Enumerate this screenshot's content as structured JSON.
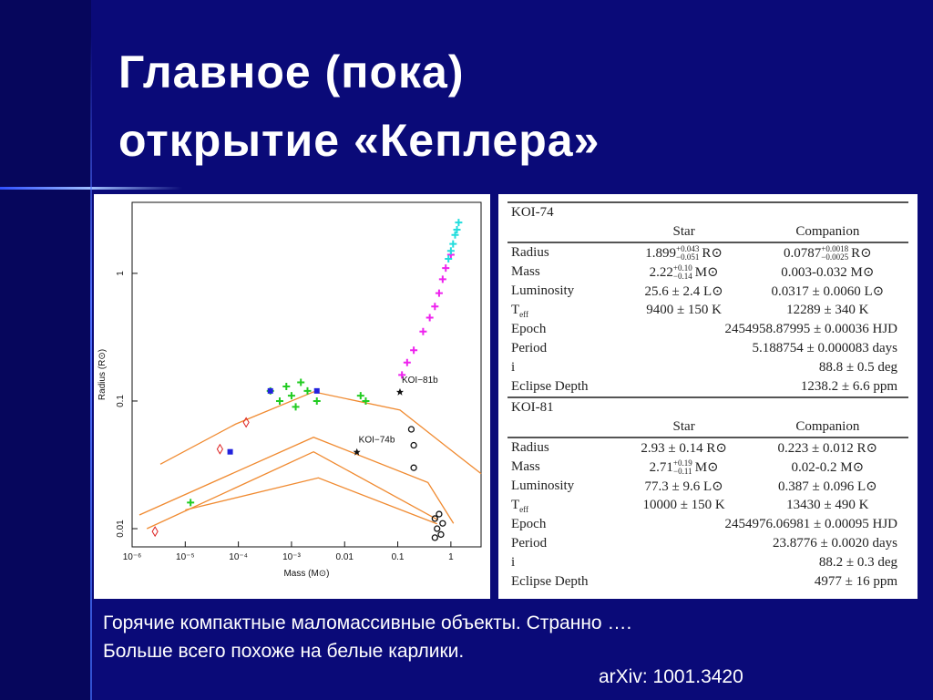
{
  "title": [
    "Главное (пока)",
    "открытие «Кеплера»"
  ],
  "plot": {
    "type": "scatter",
    "xlabel": "Mass (M⊙)",
    "ylabel": "Radius (R⊙)",
    "log_x": true,
    "log_y": true,
    "xlim": [
      1e-06,
      3.7
    ],
    "ylim": [
      0.0072,
      3.6
    ],
    "xticks": [
      {
        "value": 1e-06,
        "label": "10⁻⁶"
      },
      {
        "value": 1e-05,
        "label": "10⁻⁵"
      },
      {
        "value": 0.0001,
        "label": "10⁻⁴"
      },
      {
        "value": 0.001,
        "label": "10⁻³"
      },
      0.01,
      0.1,
      1
    ],
    "yticks": [
      0.01,
      0.1,
      1
    ],
    "curves": [
      {
        "color": "#f08a30",
        "x": [
          3.4e-06,
          8.9e-05,
          0.0026,
          0.11,
          0.82,
          3.7
        ],
        "y": [
          0.032,
          0.066,
          0.118,
          0.085,
          0.044,
          0.027
        ]
      },
      {
        "color": "#f08a30",
        "x": [
          1.37e-06,
          0.0026,
          0.37,
          1.12
        ],
        "y": [
          0.0128,
          0.052,
          0.023,
          0.011
        ]
      },
      {
        "color": "#f08a30",
        "x": [
          1.9e-06,
          0.0026,
          0.55
        ],
        "y": [
          0.01,
          0.04,
          0.0118
        ]
      },
      {
        "color": "#f08a30",
        "x": [
          1e-05,
          0.0032,
          0.55
        ],
        "y": [
          0.014,
          0.025,
          0.0109
        ]
      }
    ],
    "series": [
      {
        "color": "#22cc22",
        "marker": "cross",
        "x": [
          0.0004,
          0.0006,
          0.0008,
          0.001,
          0.0012,
          0.0015,
          0.002,
          0.003,
          0.02,
          0.025,
          1.26e-05
        ],
        "y": [
          0.12,
          0.1,
          0.13,
          0.11,
          0.09,
          0.14,
          0.12,
          0.1,
          0.11,
          0.1,
          0.016
        ]
      },
      {
        "color": "#ee22ee",
        "marker": "cross",
        "x": [
          0.12,
          0.15,
          0.2,
          0.3,
          0.4,
          0.5,
          0.6,
          0.7,
          0.8,
          1.0
        ],
        "y": [
          0.16,
          0.2,
          0.25,
          0.35,
          0.45,
          0.55,
          0.7,
          0.9,
          1.1,
          1.4
        ]
      },
      {
        "color": "#22dddd",
        "marker": "cross",
        "x": [
          0.9,
          1.0,
          1.1,
          1.2,
          1.3,
          1.4
        ],
        "y": [
          1.3,
          1.5,
          1.7,
          2.0,
          2.2,
          2.5
        ]
      },
      {
        "color": "#111111",
        "marker": "circle",
        "x": [
          0.5,
          0.55,
          0.6,
          0.65,
          0.7,
          0.5,
          0.2,
          0.2,
          0.18
        ],
        "y": [
          0.012,
          0.01,
          0.013,
          0.009,
          0.011,
          0.0085,
          0.045,
          0.03,
          0.06
        ]
      },
      {
        "color": "#2222dd",
        "marker": "square",
        "x": [
          0.0004,
          7e-05,
          0.003
        ],
        "y": [
          0.12,
          0.04,
          0.12
        ]
      },
      {
        "color": "#dd2222",
        "marker": "diamond",
        "x": [
          2.7e-06,
          4.5e-05,
          0.00014
        ],
        "y": [
          0.0095,
          0.042,
          0.068
        ]
      },
      {
        "name": "KOI−81b",
        "color": "#111111",
        "marker": "star",
        "x": [
          0.11
        ],
        "y": [
          0.118
        ]
      },
      {
        "name": "KOI−74b",
        "color": "#111111",
        "marker": "star",
        "x": [
          0.017
        ],
        "y": [
          0.04
        ]
      }
    ]
  },
  "table": {
    "sections": [
      {
        "title": "KOI-74",
        "header": [
          "Star",
          "Companion"
        ],
        "rows": [
          {
            "label": "Radius",
            "star": {
              "v": "1.899",
              "sup": "+0.043",
              "sub": "−0.051",
              "u": "R⊙"
            },
            "companion": {
              "v": "0.0787",
              "sup": "+0.0018",
              "sub": "−0.0025",
              "u": "R⊙"
            }
          },
          {
            "label": "Mass",
            "star": {
              "v": "2.22",
              "sup": "+0.10",
              "sub": "−0.14",
              "u": "M⊙"
            },
            "companion": "0.003-0.032 M⊙"
          },
          {
            "label": "Luminosity",
            "star": "25.6 ± 2.4 L⊙",
            "companion": "0.0317 ± 0.0060 L⊙"
          },
          {
            "label": {
              "v": "T",
              "sub": "eff"
            },
            "star": "9400 ± 150 K",
            "companion": "12289 ± 340 K"
          },
          {
            "label": "Epoch",
            "companion": "2454958.87995 ± 0.00036 HJD"
          },
          {
            "label": "Period",
            "companion": "5.188754 ± 0.000083 days"
          },
          {
            "label": "i",
            "companion": "88.8 ± 0.5 deg"
          },
          {
            "label": "Eclipse Depth",
            "companion": "1238.2 ± 6.6 ppm"
          }
        ]
      },
      {
        "title": "KOI-81",
        "header": [
          "Star",
          "Companion"
        ],
        "rows": [
          {
            "label": "Radius",
            "star": "2.93 ± 0.14 R⊙",
            "companion": "0.223 ± 0.012 R⊙"
          },
          {
            "label": "Mass",
            "star": {
              "v": "2.71",
              "sup": "+0.19",
              "sub": "−0.11",
              "u": "M⊙"
            },
            "companion": "0.02-0.2 M⊙"
          },
          {
            "label": "Luminosity",
            "star": "77.3 ± 9.6 L⊙",
            "companion": "0.387 ± 0.096 L⊙"
          },
          {
            "label": {
              "v": "T",
              "sub": "eff"
            },
            "star": "10000 ± 150 K",
            "companion": "13430 ± 490 K"
          },
          {
            "label": "Epoch",
            "companion": "2454976.06981 ± 0.00095 HJD"
          },
          {
            "label": "Period",
            "companion": "23.8776 ± 0.0020 days"
          },
          {
            "label": "i",
            "companion": "88.2 ± 0.3 deg"
          },
          {
            "label": "Eclipse Depth",
            "companion": "4977 ± 16 ppm"
          }
        ]
      }
    ]
  },
  "caption": [
    "Горячие компактные маломассивные объекты. Странно ….",
    "Больше всего похоже на белые карлики."
  ],
  "reference": "arXiv: 1001.3420"
}
